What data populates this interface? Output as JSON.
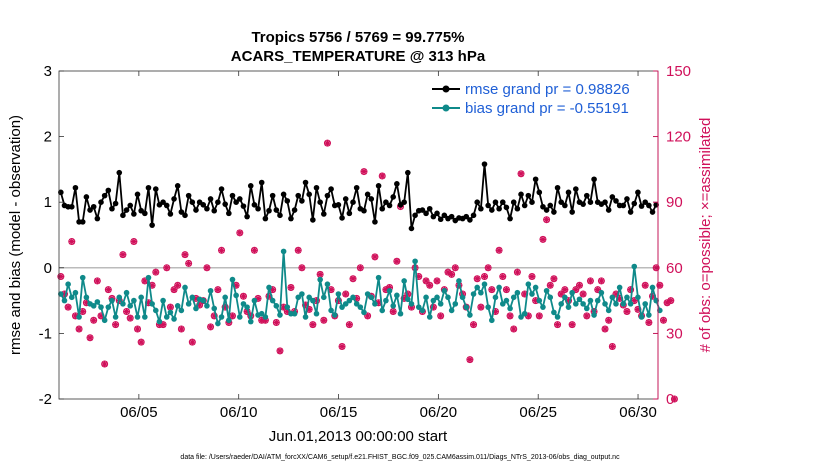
{
  "chart_data": {
    "type": "line",
    "title": "Tropics 5756 / 5769 = 99.775%",
    "subtitle": "ACARS_TEMPERATURE @ 313 hPa",
    "xlabel": "Jun.01,2013 00:00:00 start",
    "ylabel": "rmse and bias (model - observation)",
    "y2label": "# of obs: o=possible; ×=assimilated",
    "ylim": [
      -2,
      3
    ],
    "y2lim": [
      0,
      150
    ],
    "xlim": [
      1,
      31
    ],
    "yticks": [
      "3",
      "2",
      "1",
      "0",
      "-1",
      "-2"
    ],
    "y2ticks": [
      "150",
      "120",
      "90",
      "60",
      "30",
      "0"
    ],
    "xticks": [
      "06/05",
      "06/10",
      "06/15",
      "06/20",
      "06/25",
      "06/30"
    ],
    "legend": [
      {
        "label": "rmse grand pr = 0.98826",
        "color": "#000000"
      },
      {
        "label": "bias grand pr = -0.55191",
        "color": "#0f8a8a"
      }
    ],
    "footer": "data file: /Users/raeder/DAI/ATM_forcXX/CAM6_setup/f.e21.FHIST_BGC.f09_025.CAM6assim.011/Diags_NTrS_2013-06/obs_diag_output.nc",
    "series": [
      {
        "name": "rmse",
        "color": "#000000",
        "values": [
          1.15,
          0.95,
          0.93,
          0.93,
          1.22,
          0.7,
          0.7,
          1.08,
          0.88,
          0.93,
          0.75,
          1.0,
          1.1,
          1.18,
          0.9,
          0.98,
          1.45,
          0.8,
          0.88,
          0.95,
          0.82,
          1.12,
          0.87,
          0.83,
          1.22,
          0.65,
          1.2,
          0.96,
          1.0,
          0.95,
          0.82,
          1.05,
          1.25,
          0.85,
          0.8,
          1.1,
          1.0,
          0.88,
          1.0,
          0.96,
          0.9,
          1.05,
          0.87,
          1.0,
          1.2,
          0.97,
          0.83,
          1.1,
          1.0,
          1.05,
          0.94,
          0.78,
          1.25,
          0.96,
          0.9,
          1.3,
          0.75,
          0.87,
          1.1,
          0.88,
          0.8,
          1.12,
          1.02,
          0.75,
          0.88,
          1.1,
          1.02,
          1.3,
          1.12,
          0.73,
          1.22,
          1.0,
          0.82,
          1.1,
          1.2,
          0.95,
          0.96,
          0.76,
          1.05,
          0.83,
          1.0,
          1.22,
          0.9,
          0.87,
          1.12,
          1.05,
          0.7,
          1.25,
          0.9,
          1.0,
          0.95,
          1.08,
          1.28,
          0.96,
          1.0,
          1.45,
          0.6,
          0.8,
          0.87,
          0.88,
          0.83,
          0.9,
          0.78,
          0.83,
          0.74,
          0.8,
          0.75,
          0.78,
          0.72,
          0.76,
          0.75,
          0.78,
          0.73,
          0.8,
          1.0,
          0.9,
          1.58,
          0.95,
          0.88,
          1.0,
          0.9,
          1.0,
          0.92,
          0.75,
          1.0,
          0.9,
          1.12,
          0.95,
          1.1,
          1.0,
          1.35,
          1.15,
          0.93,
          0.88,
          0.95,
          0.85,
          1.22,
          1.0,
          0.95,
          1.15,
          0.85,
          1.2,
          1.0,
          0.97,
          1.1,
          1.0,
          1.35,
          1.0,
          0.97,
          1.0,
          0.88,
          1.08,
          1.02,
          0.95,
          0.95,
          1.05,
          0.85,
          0.98,
          1.15,
          0.94,
          1.0,
          0.95,
          0.85,
          0.96
        ]
      },
      {
        "name": "bias",
        "color": "#0f8a8a",
        "values": [
          -0.4,
          -0.5,
          -0.25,
          -0.45,
          -0.38,
          -0.75,
          -0.15,
          -0.45,
          -0.55,
          -0.58,
          -0.52,
          -0.6,
          -0.8,
          -0.6,
          -0.5,
          -0.75,
          -0.45,
          -0.55,
          -0.38,
          -0.58,
          -0.5,
          -0.75,
          -0.45,
          -0.75,
          -0.15,
          -0.55,
          -0.65,
          -0.82,
          -0.5,
          -0.75,
          -0.68,
          -0.78,
          -0.58,
          -0.65,
          -0.3,
          -0.55,
          -0.45,
          -0.62,
          -0.48,
          -0.5,
          -0.58,
          -0.35,
          -0.62,
          -0.85,
          -0.75,
          -0.45,
          -0.8,
          -0.18,
          -0.42,
          -0.75,
          -0.55,
          -0.6,
          -0.82,
          -0.5,
          -0.72,
          -0.7,
          -0.75,
          -0.3,
          -0.5,
          -0.58,
          -0.72,
          0.25,
          -0.6,
          -0.7,
          -0.7,
          -0.45,
          -0.4,
          -0.75,
          -0.45,
          -0.5,
          -0.7,
          -0.18,
          -0.45,
          -0.25,
          -0.65,
          -0.72,
          -0.4,
          -0.6,
          -0.55,
          -0.5,
          -0.45,
          -0.55,
          -0.6,
          -0.68,
          -0.4,
          -0.45,
          -0.55,
          -0.15,
          -0.65,
          -0.5,
          -0.35,
          -0.58,
          -0.42,
          -0.7,
          -0.2,
          -0.48,
          -0.55,
          0.1,
          -0.6,
          -0.65,
          -0.45,
          -0.75,
          -0.5,
          -0.45,
          -0.55,
          -0.35,
          -0.45,
          -0.65,
          -0.55,
          -0.2,
          -0.45,
          -0.6,
          -0.72,
          -0.4,
          -0.3,
          -0.38,
          -0.25,
          -0.6,
          -0.8,
          -0.45,
          -0.3,
          -0.55,
          -0.5,
          -0.62,
          -0.45,
          -0.38,
          -0.75,
          -0.7,
          -0.25,
          -0.4,
          -0.3,
          -0.5,
          -0.6,
          -0.35,
          -0.45,
          -0.68,
          -0.75,
          -0.55,
          -0.45,
          -0.6,
          -0.38,
          -0.55,
          -0.48,
          -0.55,
          -0.62,
          -0.5,
          -0.72,
          -0.5,
          -0.38,
          -0.55,
          -0.65,
          -0.45,
          -0.55,
          -0.3,
          -0.55,
          -0.45,
          -0.55,
          0.02,
          -0.45,
          -0.75,
          -0.55,
          -0.72,
          -0.3,
          -0.5,
          -0.65
        ]
      },
      {
        "name": "possible",
        "color": "#d0105a",
        "values": [
          56,
          48,
          42,
          72,
          38,
          32,
          40,
          44,
          28,
          36,
          54,
          38,
          16,
          50,
          46,
          34,
          45,
          66,
          40,
          37,
          72,
          32,
          26,
          54,
          44,
          52,
          58,
          34,
          34,
          60,
          42,
          50,
          52,
          32,
          66,
          62,
          26,
          46,
          43,
          45,
          60,
          33,
          38,
          50,
          68,
          42,
          35,
          38,
          52,
          76,
          47,
          40,
          38,
          68,
          46,
          36,
          36,
          47,
          50,
          35,
          22,
          42,
          40,
          51,
          40,
          68,
          60,
          43,
          41,
          34,
          45,
          57,
          36,
          117,
          50,
          38,
          45,
          24,
          48,
          34,
          55,
          46,
          60,
          104,
          38,
          47,
          65,
          44,
          102,
          50,
          51,
          40,
          63,
          88,
          46,
          48,
          42,
          60,
          56,
          40,
          54,
          52,
          42,
          54,
          38,
          50,
          58,
          57,
          60,
          52,
          48,
          42,
          18,
          34,
          55,
          42,
          56,
          60,
          50,
          40,
          68,
          56,
          50,
          38,
          32,
          58,
          103,
          48,
          38,
          56,
          45,
          38,
          73,
          82,
          52,
          55,
          34,
          48,
          50,
          45,
          34,
          50,
          52,
          48,
          38,
          54,
          40,
          50,
          54,
          32,
          36,
          24,
          48,
          46,
          43,
          40,
          50,
          45,
          41,
          38,
          52,
          35,
          47,
          60,
          52,
          36,
          44,
          45,
          0
        ]
      },
      {
        "name": "assimilated",
        "color": "#d0105a",
        "values": [
          56,
          48,
          42,
          72,
          38,
          32,
          40,
          44,
          28,
          36,
          54,
          38,
          16,
          50,
          46,
          34,
          45,
          66,
          40,
          37,
          72,
          32,
          26,
          54,
          44,
          52,
          58,
          34,
          34,
          60,
          42,
          50,
          52,
          32,
          66,
          62,
          26,
          46,
          43,
          45,
          60,
          33,
          38,
          50,
          68,
          42,
          35,
          38,
          52,
          76,
          47,
          40,
          38,
          68,
          46,
          36,
          36,
          47,
          50,
          35,
          22,
          42,
          40,
          51,
          40,
          68,
          60,
          43,
          41,
          34,
          45,
          57,
          36,
          117,
          50,
          38,
          45,
          24,
          48,
          34,
          55,
          46,
          60,
          104,
          38,
          47,
          65,
          44,
          102,
          50,
          51,
          40,
          63,
          88,
          46,
          48,
          42,
          60,
          56,
          40,
          54,
          52,
          42,
          54,
          38,
          50,
          58,
          57,
          60,
          52,
          48,
          42,
          18,
          34,
          55,
          42,
          56,
          60,
          50,
          40,
          68,
          56,
          50,
          38,
          32,
          58,
          103,
          48,
          38,
          56,
          45,
          38,
          73,
          82,
          52,
          55,
          34,
          48,
          50,
          45,
          34,
          50,
          52,
          48,
          38,
          54,
          40,
          50,
          54,
          32,
          36,
          24,
          48,
          46,
          43,
          40,
          50,
          45,
          41,
          38,
          52,
          35,
          47,
          60,
          52,
          36,
          44,
          45,
          0
        ]
      }
    ]
  }
}
